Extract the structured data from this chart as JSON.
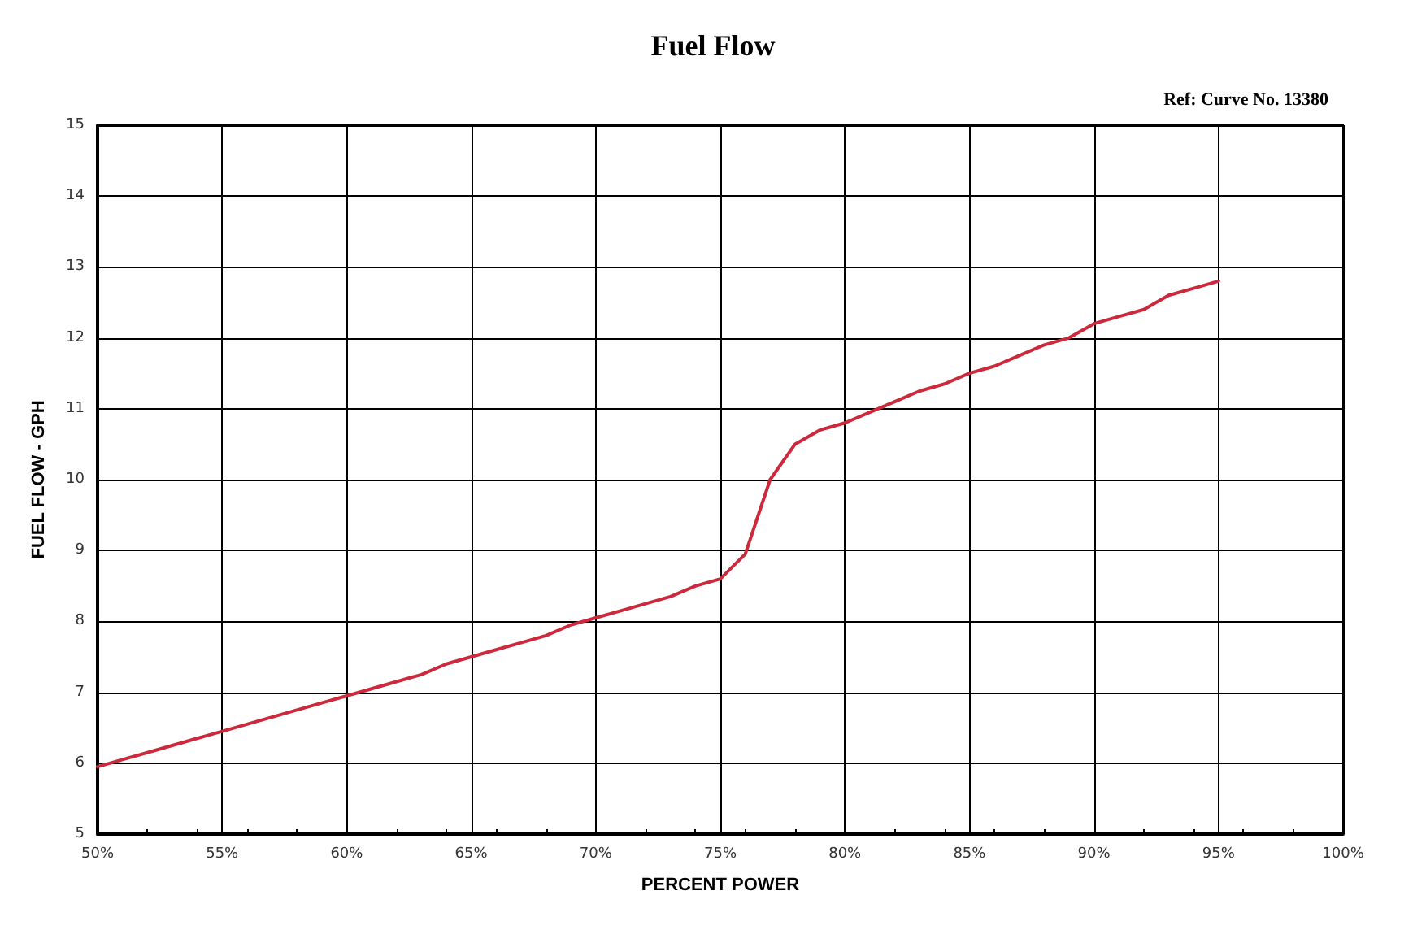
{
  "chart_data": {
    "type": "line",
    "title": "Fuel Flow",
    "xlabel": "PERCENT POWER",
    "ylabel": "FUEL FLOW - GPH",
    "annotations": [
      "Ref: Curve No. 13380"
    ],
    "x": [
      50,
      51,
      52,
      53,
      54,
      55,
      56,
      57,
      58,
      59,
      60,
      61,
      62,
      63,
      64,
      65,
      66,
      67,
      68,
      69,
      70,
      71,
      72,
      73,
      74,
      75,
      76,
      77,
      78,
      79,
      80,
      81,
      82,
      83,
      84,
      85,
      86,
      87,
      88,
      89,
      90,
      91,
      92,
      93,
      94,
      95
    ],
    "series": [
      {
        "color": "#cc2a3c",
        "values": [
          5.95,
          6.05,
          6.15,
          6.25,
          6.35,
          6.45,
          6.55,
          6.65,
          6.75,
          6.85,
          6.95,
          7.05,
          7.15,
          7.25,
          7.4,
          7.5,
          7.6,
          7.7,
          7.8,
          7.95,
          8.05,
          8.15,
          8.25,
          8.35,
          8.5,
          8.6,
          8.95,
          10.0,
          10.5,
          10.7,
          10.8,
          10.95,
          11.1,
          11.25,
          11.35,
          11.5,
          11.6,
          11.75,
          11.9,
          12.0,
          12.2,
          12.3,
          12.4,
          12.6,
          12.7,
          12.8
        ]
      }
    ],
    "xlim": [
      50,
      100
    ],
    "xticks": [
      {
        "value": 50,
        "label": "50%"
      },
      {
        "value": 55,
        "label": "55%"
      },
      {
        "value": 60,
        "label": "60%"
      },
      {
        "value": 65,
        "label": "65%"
      },
      {
        "value": 70,
        "label": "70%"
      },
      {
        "value": 75,
        "label": "75%"
      },
      {
        "value": 80,
        "label": "80%"
      },
      {
        "value": 85,
        "label": "85%"
      },
      {
        "value": 90,
        "label": "90%"
      },
      {
        "value": 95,
        "label": "95%"
      },
      {
        "value": 100,
        "label": "100%"
      }
    ],
    "ylim": [
      5,
      15
    ],
    "yticks": [
      5,
      6,
      7,
      8,
      9,
      10,
      11,
      12,
      13,
      14,
      15
    ],
    "grid": true,
    "marker": "none",
    "line_style": "solid"
  }
}
